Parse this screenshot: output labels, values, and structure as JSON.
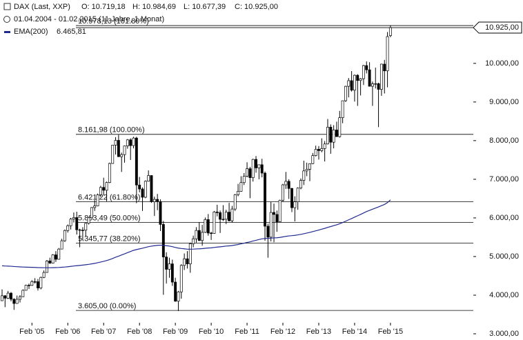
{
  "chart_data": {
    "type": "candlestick",
    "title": "DAX (Last, XXP)",
    "summary": [
      "O: 10.719,18",
      "H: 10.984,69",
      "L: 10.677,39",
      "C: 10.925,00"
    ],
    "period": "01.04.2004 - 01.02.2015 (11 Jahre, 1 Monat)",
    "x": [
      "2004-04",
      "2004-05",
      "2004-06",
      "2004-07",
      "2004-08",
      "2004-09",
      "2004-10",
      "2004-11",
      "2004-12",
      "2005-01",
      "2005-02",
      "2005-03",
      "2005-04",
      "2005-05",
      "2005-06",
      "2005-07",
      "2005-08",
      "2005-09",
      "2005-10",
      "2005-11",
      "2005-12",
      "2006-01",
      "2006-02",
      "2006-03",
      "2006-04",
      "2006-05",
      "2006-06",
      "2006-07",
      "2006-08",
      "2006-09",
      "2006-10",
      "2006-11",
      "2006-12",
      "2007-01",
      "2007-02",
      "2007-03",
      "2007-04",
      "2007-05",
      "2007-06",
      "2007-07",
      "2007-08",
      "2007-09",
      "2007-10",
      "2007-11",
      "2007-12",
      "2008-01",
      "2008-02",
      "2008-03",
      "2008-04",
      "2008-05",
      "2008-06",
      "2008-07",
      "2008-08",
      "2008-09",
      "2008-10",
      "2008-11",
      "2008-12",
      "2009-01",
      "2009-02",
      "2009-03",
      "2009-04",
      "2009-05",
      "2009-06",
      "2009-07",
      "2009-08",
      "2009-09",
      "2009-10",
      "2009-11",
      "2009-12",
      "2010-01",
      "2010-02",
      "2010-03",
      "2010-04",
      "2010-05",
      "2010-06",
      "2010-07",
      "2010-08",
      "2010-09",
      "2010-10",
      "2010-11",
      "2010-12",
      "2011-01",
      "2011-02",
      "2011-03",
      "2011-04",
      "2011-05",
      "2011-06",
      "2011-07",
      "2011-08",
      "2011-09",
      "2011-10",
      "2011-11",
      "2011-12",
      "2012-01",
      "2012-02",
      "2012-03",
      "2012-04",
      "2012-05",
      "2012-06",
      "2012-07",
      "2012-08",
      "2012-09",
      "2012-10",
      "2012-11",
      "2012-12",
      "2013-01",
      "2013-02",
      "2013-03",
      "2013-04",
      "2013-05",
      "2013-06",
      "2013-07",
      "2013-08",
      "2013-09",
      "2013-10",
      "2013-11",
      "2013-12",
      "2014-01",
      "2014-02",
      "2014-03",
      "2014-04",
      "2014-05",
      "2014-06",
      "2014-07",
      "2014-08",
      "2014-09",
      "2014-10",
      "2014-11",
      "2014-12",
      "2015-01",
      "2015-02"
    ],
    "ohlc": [
      [
        3856,
        4150,
        3850,
        3985
      ],
      [
        3985,
        4000,
        3690,
        3921
      ],
      [
        3921,
        4110,
        3900,
        4052
      ],
      [
        4052,
        4080,
        3840,
        3895
      ],
      [
        3895,
        3920,
        3620,
        3785
      ],
      [
        3785,
        3990,
        3780,
        3893
      ],
      [
        3893,
        4000,
        3810,
        3960
      ],
      [
        3960,
        4150,
        3950,
        4126
      ],
      [
        4126,
        4270,
        4120,
        4256
      ],
      [
        4256,
        4300,
        4160,
        4254
      ],
      [
        4254,
        4390,
        4240,
        4350
      ],
      [
        4350,
        4440,
        4300,
        4349
      ],
      [
        4349,
        4420,
        4120,
        4185
      ],
      [
        4185,
        4480,
        4150,
        4460
      ],
      [
        4460,
        4640,
        4440,
        4587
      ],
      [
        4587,
        4910,
        4580,
        4886
      ],
      [
        4886,
        4970,
        4810,
        4830
      ],
      [
        4830,
        5060,
        4820,
        5044
      ],
      [
        5044,
        5140,
        4860,
        4929
      ],
      [
        4929,
        5220,
        4920,
        5193
      ],
      [
        5193,
        5460,
        5190,
        5408
      ],
      [
        5408,
        5700,
        5380,
        5674
      ],
      [
        5674,
        5830,
        5620,
        5797
      ],
      [
        5797,
        6000,
        5700,
        5970
      ],
      [
        5970,
        6140,
        5880,
        6009
      ],
      [
        6009,
        6160,
        5570,
        5692
      ],
      [
        5692,
        5720,
        5240,
        5683
      ],
      [
        5683,
        5760,
        5420,
        5682
      ],
      [
        5682,
        5870,
        5520,
        5860
      ],
      [
        5860,
        6020,
        5830,
        6004
      ],
      [
        6004,
        6280,
        5990,
        6268
      ],
      [
        6268,
        6460,
        6180,
        6309
      ],
      [
        6309,
        6630,
        6300,
        6597
      ],
      [
        6597,
        6830,
        6540,
        6789
      ],
      [
        6789,
        7040,
        6590,
        6715
      ],
      [
        6715,
        6940,
        6430,
        6917
      ],
      [
        6917,
        7430,
        6900,
        7409
      ],
      [
        7409,
        7890,
        7400,
        7883
      ],
      [
        7883,
        8090,
        7640,
        8007
      ],
      [
        8007,
        8150,
        7580,
        7584
      ],
      [
        7584,
        7690,
        7190,
        7638
      ],
      [
        7638,
        7870,
        7430,
        7862
      ],
      [
        7862,
        8040,
        7790,
        8020
      ],
      [
        8020,
        8060,
        7500,
        7871
      ],
      [
        7871,
        8100,
        7800,
        8067
      ],
      [
        8067,
        8100,
        6380,
        6851
      ],
      [
        6851,
        7060,
        6660,
        6748
      ],
      [
        6748,
        6790,
        6180,
        6535
      ],
      [
        6535,
        6970,
        6510,
        6949
      ],
      [
        6949,
        7230,
        6940,
        7097
      ],
      [
        7097,
        7100,
        6390,
        6418
      ],
      [
        6418,
        6550,
        6050,
        6480
      ],
      [
        6480,
        6620,
        6200,
        6422
      ],
      [
        6422,
        6480,
        5660,
        5831
      ],
      [
        5831,
        5920,
        4010,
        4988
      ],
      [
        4988,
        5110,
        4300,
        4669
      ],
      [
        4669,
        4970,
        4450,
        4810
      ],
      [
        4810,
        4920,
        4240,
        4338
      ],
      [
        4338,
        4450,
        3830,
        3843
      ],
      [
        3843,
        4110,
        3590,
        4085
      ],
      [
        4085,
        4800,
        3910,
        4770
      ],
      [
        4770,
        5080,
        4650,
        4941
      ],
      [
        4941,
        5140,
        4690,
        4809
      ],
      [
        4809,
        5360,
        4580,
        5332
      ],
      [
        5332,
        5540,
        5240,
        5458
      ],
      [
        5458,
        5760,
        5360,
        5675
      ],
      [
        5675,
        5890,
        5400,
        5415
      ],
      [
        5415,
        5820,
        5280,
        5626
      ],
      [
        5626,
        6010,
        5610,
        5957
      ],
      [
        5957,
        6100,
        5540,
        5608
      ],
      [
        5608,
        5640,
        5430,
        5598
      ],
      [
        5598,
        6180,
        5590,
        6154
      ],
      [
        6154,
        6340,
        6040,
        6136
      ],
      [
        6136,
        6190,
        5610,
        5964
      ],
      [
        5964,
        6330,
        5920,
        5966
      ],
      [
        5966,
        6210,
        5840,
        6148
      ],
      [
        6148,
        6390,
        5910,
        5925
      ],
      [
        5925,
        6310,
        5880,
        6229
      ],
      [
        6229,
        6620,
        6180,
        6601
      ],
      [
        6601,
        6880,
        6560,
        6688
      ],
      [
        6688,
        7080,
        6680,
        6914
      ],
      [
        6914,
        7160,
        6850,
        7077
      ],
      [
        7077,
        7440,
        7050,
        7273
      ],
      [
        7273,
        7320,
        6510,
        7041
      ],
      [
        7041,
        7530,
        6940,
        7514
      ],
      [
        7514,
        7600,
        7170,
        7294
      ],
      [
        7294,
        7350,
        7000,
        7376
      ],
      [
        7376,
        7530,
        7050,
        7159
      ],
      [
        7159,
        7200,
        5410,
        5785
      ],
      [
        5785,
        5850,
        4970,
        5502
      ],
      [
        5502,
        6410,
        5390,
        6141
      ],
      [
        6141,
        6370,
        5370,
        6089
      ],
      [
        6089,
        6190,
        5640,
        5898
      ],
      [
        5898,
        6470,
        5900,
        6458
      ],
      [
        6458,
        6880,
        6410,
        6856
      ],
      [
        6856,
        7190,
        6750,
        6947
      ],
      [
        6947,
        7000,
        6490,
        6761
      ],
      [
        6761,
        6780,
        6150,
        6264
      ],
      [
        6264,
        6560,
        5910,
        6416
      ],
      [
        6416,
        6790,
        6210,
        6772
      ],
      [
        6772,
        7020,
        6740,
        6971
      ],
      [
        6971,
        7480,
        6850,
        7216
      ],
      [
        7216,
        7430,
        7080,
        7260
      ],
      [
        7260,
        7410,
        6950,
        7405
      ],
      [
        7405,
        7680,
        7390,
        7612
      ],
      [
        7612,
        7870,
        7590,
        7776
      ],
      [
        7776,
        7860,
        7510,
        7741
      ],
      [
        7741,
        8060,
        7700,
        7795
      ],
      [
        7795,
        7990,
        7460,
        7914
      ],
      [
        7914,
        8560,
        7900,
        8349
      ],
      [
        8349,
        8420,
        7660,
        7959
      ],
      [
        7959,
        8400,
        7800,
        8276
      ],
      [
        8276,
        8490,
        8100,
        8103
      ],
      [
        8103,
        8770,
        8080,
        8594
      ],
      [
        8594,
        9030,
        8450,
        9033
      ],
      [
        9033,
        9420,
        9000,
        9406
      ],
      [
        9406,
        9620,
        9120,
        9552
      ],
      [
        9552,
        9800,
        9270,
        9306
      ],
      [
        9306,
        9710,
        9010,
        9692
      ],
      [
        9692,
        9720,
        8900,
        9556
      ],
      [
        9556,
        9620,
        9170,
        9603
      ],
      [
        9603,
        9960,
        9440,
        9943
      ],
      [
        9943,
        10050,
        9740,
        9833
      ],
      [
        9833,
        10030,
        9400,
        9407
      ],
      [
        9407,
        9530,
        8900,
        9470
      ],
      [
        9470,
        9890,
        9350,
        9474
      ],
      [
        9474,
        9500,
        8350,
        9327
      ],
      [
        9327,
        9990,
        9160,
        9980
      ],
      [
        9980,
        10090,
        9220,
        9806
      ],
      [
        9806,
        10810,
        9380,
        10694
      ],
      [
        10719.18,
        10984.69,
        10677.39,
        10925
      ]
    ],
    "series": [
      {
        "name": "EMA(200)",
        "value_label": "6.465,81",
        "color": "#1f2a8f",
        "values": [
          4760,
          4755,
          4752,
          4748,
          4742,
          4737,
          4732,
          4728,
          4725,
          4722,
          4720,
          4718,
          4714,
          4712,
          4710,
          4710,
          4710,
          4712,
          4714,
          4717,
          4722,
          4728,
          4736,
          4745,
          4755,
          4763,
          4770,
          4778,
          4787,
          4797,
          4810,
          4823,
          4840,
          4858,
          4875,
          4895,
          4920,
          4950,
          4982,
          5010,
          5040,
          5070,
          5100,
          5130,
          5160,
          5180,
          5198,
          5215,
          5235,
          5255,
          5268,
          5280,
          5290,
          5295,
          5290,
          5280,
          5270,
          5255,
          5235,
          5218,
          5208,
          5200,
          5190,
          5190,
          5192,
          5197,
          5200,
          5205,
          5214,
          5220,
          5225,
          5235,
          5245,
          5252,
          5260,
          5270,
          5276,
          5285,
          5298,
          5312,
          5328,
          5345,
          5364,
          5380,
          5402,
          5420,
          5440,
          5458,
          5466,
          5470,
          5476,
          5482,
          5486,
          5495,
          5508,
          5522,
          5534,
          5540,
          5548,
          5560,
          5574,
          5590,
          5607,
          5625,
          5645,
          5666,
          5686,
          5707,
          5729,
          5755,
          5776,
          5800,
          5822,
          5849,
          5880,
          5914,
          5950,
          5983,
          6020,
          6055,
          6090,
          6128,
          6165,
          6195,
          6225,
          6255,
          6283,
          6317,
          6348,
          6395,
          6465.81
        ]
      }
    ],
    "last": {
      "value": 10925,
      "label": "10.925,00"
    },
    "fib_levels": [
      {
        "value": 10978.13,
        "label": "10.978,13 (161.80%)"
      },
      {
        "value": 8161.98,
        "label": "8.161,98 (100.00%)"
      },
      {
        "value": 6421.22,
        "label": "6.421,22 (61.80%)"
      },
      {
        "value": 5883.49,
        "label": "5.883,49 (50.00%)"
      },
      {
        "value": 5345.77,
        "label": "5.345,77 (38.20%)"
      },
      {
        "value": 3605,
        "label": "3.605,00 (0.00%)"
      }
    ],
    "ylim": [
      3000,
      11640
    ],
    "yticks": [
      {
        "value": 3000,
        "label": "3.000,00"
      },
      {
        "value": 4000,
        "label": "4.000,00"
      },
      {
        "value": 5000,
        "label": "5.000,00"
      },
      {
        "value": 6000,
        "label": "6.000,00"
      },
      {
        "value": 7000,
        "label": "7.000,00"
      },
      {
        "value": 8000,
        "label": "8.000,00"
      },
      {
        "value": 9000,
        "label": "9.000,00"
      },
      {
        "value": 10000,
        "label": "10.000,00"
      }
    ],
    "xticks": [
      {
        "value": "2005-02",
        "label": "Feb '05"
      },
      {
        "value": "2006-02",
        "label": "Feb '06"
      },
      {
        "value": "2007-02",
        "label": "Feb '07"
      },
      {
        "value": "2008-02",
        "label": "Feb '08"
      },
      {
        "value": "2009-02",
        "label": "Feb '09"
      },
      {
        "value": "2010-02",
        "label": "Feb '10"
      },
      {
        "value": "2011-02",
        "label": "Feb '11"
      },
      {
        "value": "2012-02",
        "label": "Feb '12"
      },
      {
        "value": "2013-02",
        "label": "Feb '13"
      },
      {
        "value": "2014-02",
        "label": "Feb '14"
      },
      {
        "value": "2015-02",
        "label": "Feb '15"
      }
    ],
    "up_color": "#ffffff",
    "down_color": "#000000"
  }
}
